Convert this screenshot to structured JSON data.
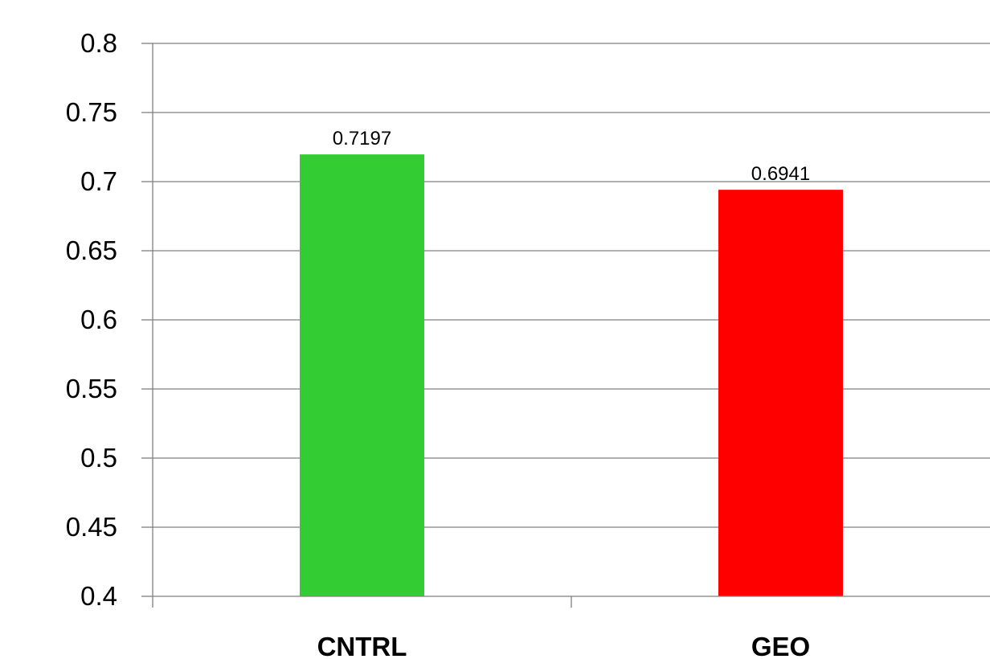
{
  "chart_data": {
    "type": "bar",
    "title": "",
    "xlabel": "",
    "ylabel": "",
    "categories": [
      "CNTRL",
      "GEO"
    ],
    "values": [
      0.7197,
      0.6941
    ],
    "data_labels": [
      "0.7197",
      "0.6941"
    ],
    "bar_colors": [
      "#33cc33",
      "#ff0000"
    ],
    "ylim": [
      0.4,
      0.8
    ],
    "y_ticks": [
      0.4,
      0.45,
      0.5,
      0.55,
      0.6,
      0.65,
      0.7,
      0.75,
      0.8
    ],
    "y_tick_labels": [
      "0.4",
      "0.45",
      "0.5",
      "0.55",
      "0.6",
      "0.65",
      "0.7",
      "0.75",
      "0.8"
    ],
    "grid": true,
    "gridline_color": "#808080",
    "legend": "none"
  }
}
